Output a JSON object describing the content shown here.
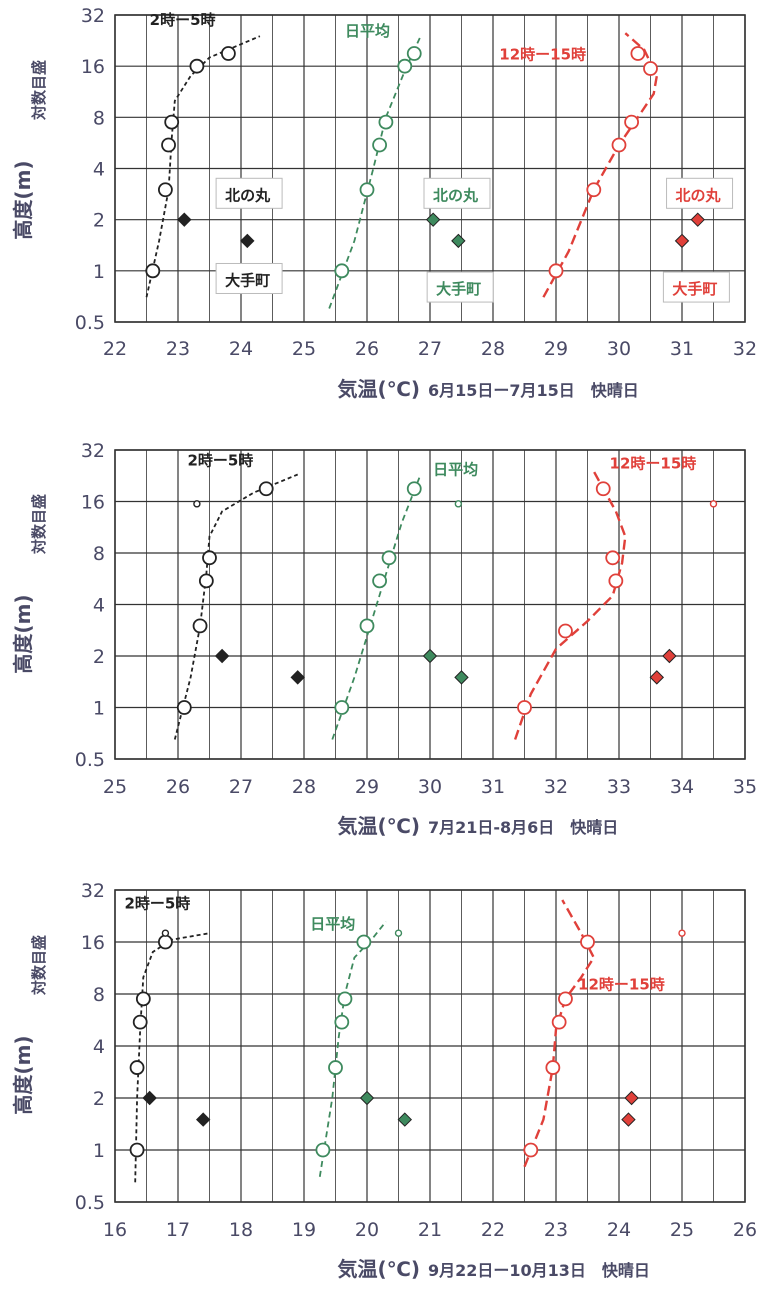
{
  "figure": {
    "ylabel_main": "高度(m)",
    "ylabel_sub": "対数目盛",
    "ylabel_unit": "",
    "colors": {
      "night": "#222222",
      "mean": "#3e8a5e",
      "day": "#e0403a",
      "grid": "#333333"
    }
  },
  "chart_data": [
    {
      "type": "scatter",
      "yscale": "log2",
      "xlabel": "気温(℃)",
      "period": "6月15日ー7月15日　快晴日",
      "xlim": [
        22,
        32
      ],
      "xticks": [
        22,
        23,
        24,
        25,
        26,
        27,
        28,
        29,
        30,
        31,
        32
      ],
      "ylim": [
        0.5,
        32
      ],
      "yticks": [
        0.5,
        1,
        2,
        4,
        8,
        16,
        32
      ],
      "series": [
        {
          "name": "2時ー5時",
          "color": "#222222",
          "dash": "4,3",
          "width": 1.8,
          "points": [
            {
              "x": 22.6,
              "y": 1
            },
            {
              "x": 22.8,
              "y": 3
            },
            {
              "x": 22.85,
              "y": 5.5
            },
            {
              "x": 22.9,
              "y": 7.5
            },
            {
              "x": 23.3,
              "y": 16
            },
            {
              "x": 23.8,
              "y": 19
            }
          ],
          "line": [
            {
              "x": 22.5,
              "y": 0.7
            },
            {
              "x": 22.7,
              "y": 1.5
            },
            {
              "x": 22.85,
              "y": 3
            },
            {
              "x": 22.9,
              "y": 6
            },
            {
              "x": 22.95,
              "y": 10
            },
            {
              "x": 23.2,
              "y": 14
            },
            {
              "x": 23.5,
              "y": 18
            },
            {
              "x": 24.3,
              "y": 24
            }
          ]
        },
        {
          "name": "日平均",
          "color": "#3e8a5e",
          "dash": "6,4",
          "width": 1.8,
          "points": [
            {
              "x": 25.6,
              "y": 1
            },
            {
              "x": 26.0,
              "y": 3
            },
            {
              "x": 26.2,
              "y": 5.5
            },
            {
              "x": 26.3,
              "y": 7.5
            },
            {
              "x": 26.6,
              "y": 16
            },
            {
              "x": 26.75,
              "y": 19
            }
          ],
          "line": [
            {
              "x": 25.4,
              "y": 0.6
            },
            {
              "x": 25.8,
              "y": 1.5
            },
            {
              "x": 26.1,
              "y": 4
            },
            {
              "x": 26.3,
              "y": 8
            },
            {
              "x": 26.6,
              "y": 15
            },
            {
              "x": 26.85,
              "y": 24
            }
          ]
        },
        {
          "name": "12時ー15時",
          "color": "#e0403a",
          "dash": "10,5",
          "width": 2.4,
          "points": [
            {
              "x": 29.0,
              "y": 1
            },
            {
              "x": 29.6,
              "y": 3
            },
            {
              "x": 30.0,
              "y": 5.5
            },
            {
              "x": 30.2,
              "y": 7.5
            },
            {
              "x": 30.5,
              "y": 15.5
            },
            {
              "x": 30.3,
              "y": 19
            }
          ],
          "line": [
            {
              "x": 28.8,
              "y": 0.7
            },
            {
              "x": 29.2,
              "y": 1.3
            },
            {
              "x": 29.6,
              "y": 3
            },
            {
              "x": 30.0,
              "y": 5.5
            },
            {
              "x": 30.3,
              "y": 8
            },
            {
              "x": 30.55,
              "y": 11
            },
            {
              "x": 30.6,
              "y": 14
            },
            {
              "x": 30.4,
              "y": 20
            },
            {
              "x": 30.1,
              "y": 25
            }
          ]
        },
        {
          "name": "北の丸",
          "marker": "diamond",
          "points": [
            {
              "x": 23.1,
              "y": 2,
              "c": "#222222"
            },
            {
              "x": 27.05,
              "y": 2,
              "c": "#3e8a5e"
            },
            {
              "x": 31.25,
              "y": 2,
              "c": "#e0403a"
            }
          ]
        },
        {
          "name": "大手町",
          "marker": "diamond",
          "points": [
            {
              "x": 24.1,
              "y": 1.5,
              "c": "#222222"
            },
            {
              "x": 27.45,
              "y": 1.5,
              "c": "#3e8a5e"
            },
            {
              "x": 31.0,
              "y": 1.5,
              "c": "#e0403a"
            }
          ]
        }
      ],
      "labels": [
        {
          "text": "2時ー5時",
          "x": 22.55,
          "y": 28,
          "color": "#222222",
          "box": false,
          "size": 15
        },
        {
          "text": "日平均",
          "x": 25.65,
          "y": 24,
          "color": "#3e8a5e",
          "box": false,
          "size": 15
        },
        {
          "text": "12時ー15時",
          "x": 28.1,
          "y": 17.5,
          "color": "#e0403a",
          "box": false,
          "size": 15
        },
        {
          "text": "北の丸",
          "x": 23.7,
          "y": 2.6,
          "color": "#222222",
          "box": true,
          "size": 15
        },
        {
          "text": "大手町",
          "x": 23.7,
          "y": 0.82,
          "color": "#222222",
          "box": true,
          "size": 15
        },
        {
          "text": "北の丸",
          "x": 27.0,
          "y": 2.6,
          "color": "#3e8a5e",
          "box": true,
          "size": 15
        },
        {
          "text": "大手町",
          "x": 27.05,
          "y": 0.73,
          "color": "#3e8a5e",
          "box": true,
          "size": 15
        },
        {
          "text": "北の丸",
          "x": 30.85,
          "y": 2.6,
          "color": "#e0403a",
          "box": true,
          "size": 15
        },
        {
          "text": "大手町",
          "x": 30.8,
          "y": 0.73,
          "color": "#e0403a",
          "box": true,
          "size": 15
        }
      ]
    },
    {
      "type": "scatter",
      "yscale": "log2",
      "xlabel": "気温(℃)",
      "period": "7月21日-8月6日　快晴日",
      "xlim": [
        25,
        35
      ],
      "xticks": [
        25,
        26,
        27,
        28,
        29,
        30,
        31,
        32,
        33,
        34,
        35
      ],
      "ylim": [
        0.5,
        32
      ],
      "yticks": [
        0.5,
        1,
        2,
        4,
        8,
        16,
        32
      ],
      "series": [
        {
          "name": "2時ー5時",
          "color": "#222222",
          "dash": "4,3",
          "width": 1.8,
          "points": [
            {
              "x": 26.1,
              "y": 1
            },
            {
              "x": 26.35,
              "y": 3
            },
            {
              "x": 26.45,
              "y": 5.5
            },
            {
              "x": 26.5,
              "y": 7.5
            },
            {
              "x": 27.4,
              "y": 19
            }
          ],
          "line": [
            {
              "x": 25.95,
              "y": 0.65
            },
            {
              "x": 26.2,
              "y": 1.5
            },
            {
              "x": 26.35,
              "y": 3
            },
            {
              "x": 26.45,
              "y": 6
            },
            {
              "x": 26.5,
              "y": 10
            },
            {
              "x": 26.7,
              "y": 14
            },
            {
              "x": 27.2,
              "y": 18
            },
            {
              "x": 27.9,
              "y": 23
            }
          ],
          "small": [
            {
              "x": 26.3,
              "y": 15.5
            }
          ]
        },
        {
          "name": "日平均",
          "color": "#3e8a5e",
          "dash": "6,4",
          "width": 1.8,
          "points": [
            {
              "x": 28.6,
              "y": 1
            },
            {
              "x": 29.0,
              "y": 3
            },
            {
              "x": 29.2,
              "y": 5.5
            },
            {
              "x": 29.35,
              "y": 7.5
            },
            {
              "x": 29.75,
              "y": 19
            }
          ],
          "line": [
            {
              "x": 28.45,
              "y": 0.65
            },
            {
              "x": 28.8,
              "y": 1.5
            },
            {
              "x": 29.05,
              "y": 3
            },
            {
              "x": 29.3,
              "y": 6
            },
            {
              "x": 29.55,
              "y": 12
            },
            {
              "x": 29.85,
              "y": 23
            }
          ],
          "small": [
            {
              "x": 30.45,
              "y": 15.5
            }
          ]
        },
        {
          "name": "12時ー15時",
          "color": "#e0403a",
          "dash": "10,5",
          "width": 2.4,
          "points": [
            {
              "x": 31.5,
              "y": 1
            },
            {
              "x": 32.15,
              "y": 2.8
            },
            {
              "x": 32.95,
              "y": 5.5
            },
            {
              "x": 32.9,
              "y": 7.5
            },
            {
              "x": 32.75,
              "y": 19
            }
          ],
          "line": [
            {
              "x": 31.35,
              "y": 0.65
            },
            {
              "x": 31.6,
              "y": 1.2
            },
            {
              "x": 32.0,
              "y": 2.2
            },
            {
              "x": 32.5,
              "y": 3.2
            },
            {
              "x": 32.9,
              "y": 4.5
            },
            {
              "x": 33.05,
              "y": 7
            },
            {
              "x": 33.1,
              "y": 10
            },
            {
              "x": 32.95,
              "y": 14
            },
            {
              "x": 32.75,
              "y": 19
            },
            {
              "x": 32.6,
              "y": 24
            }
          ],
          "small": [
            {
              "x": 34.5,
              "y": 15.5
            }
          ]
        },
        {
          "name": "北の丸",
          "marker": "diamond",
          "points": [
            {
              "x": 26.7,
              "y": 2,
              "c": "#222222"
            },
            {
              "x": 30.0,
              "y": 2,
              "c": "#3e8a5e"
            },
            {
              "x": 33.8,
              "y": 2,
              "c": "#e0403a"
            }
          ]
        },
        {
          "name": "大手町",
          "marker": "diamond",
          "points": [
            {
              "x": 27.9,
              "y": 1.5,
              "c": "#222222"
            },
            {
              "x": 30.5,
              "y": 1.5,
              "c": "#3e8a5e"
            },
            {
              "x": 33.6,
              "y": 1.5,
              "c": "#e0403a"
            }
          ]
        }
      ],
      "labels": [
        {
          "text": "2時ー5時",
          "x": 26.15,
          "y": 26,
          "color": "#222222",
          "box": false,
          "size": 15
        },
        {
          "text": "日平均",
          "x": 30.05,
          "y": 23,
          "color": "#3e8a5e",
          "box": false,
          "size": 15
        },
        {
          "text": "12時ー15時",
          "x": 32.85,
          "y": 25,
          "color": "#e0403a",
          "box": false,
          "size": 15
        }
      ]
    },
    {
      "type": "scatter",
      "yscale": "log2",
      "xlabel": "気温(℃)",
      "period": "9月22日ー10月13日　快晴日",
      "xlim": [
        16,
        26
      ],
      "xticks": [
        16,
        17,
        18,
        19,
        20,
        21,
        22,
        23,
        24,
        25,
        26
      ],
      "ylim": [
        0.5,
        32
      ],
      "yticks": [
        0.5,
        1,
        2,
        4,
        8,
        16,
        32
      ],
      "series": [
        {
          "name": "2時ー5時",
          "color": "#222222",
          "dash": "4,3",
          "width": 1.8,
          "points": [
            {
              "x": 16.35,
              "y": 1
            },
            {
              "x": 16.35,
              "y": 3
            },
            {
              "x": 16.4,
              "y": 5.5
            },
            {
              "x": 16.45,
              "y": 7.5
            },
            {
              "x": 16.8,
              "y": 16
            }
          ],
          "line": [
            {
              "x": 16.32,
              "y": 0.65
            },
            {
              "x": 16.35,
              "y": 2
            },
            {
              "x": 16.4,
              "y": 5
            },
            {
              "x": 16.45,
              "y": 10
            },
            {
              "x": 16.6,
              "y": 14
            },
            {
              "x": 16.9,
              "y": 16.5
            },
            {
              "x": 17.5,
              "y": 18
            }
          ],
          "small": [
            {
              "x": 16.8,
              "y": 18
            }
          ]
        },
        {
          "name": "日平均",
          "color": "#3e8a5e",
          "dash": "6,4",
          "width": 1.8,
          "points": [
            {
              "x": 19.3,
              "y": 1
            },
            {
              "x": 19.5,
              "y": 3
            },
            {
              "x": 19.6,
              "y": 5.5
            },
            {
              "x": 19.65,
              "y": 7.5
            },
            {
              "x": 19.95,
              "y": 16
            }
          ],
          "line": [
            {
              "x": 19.25,
              "y": 0.7
            },
            {
              "x": 19.45,
              "y": 2
            },
            {
              "x": 19.55,
              "y": 4.5
            },
            {
              "x": 19.65,
              "y": 8
            },
            {
              "x": 19.8,
              "y": 13
            },
            {
              "x": 20.1,
              "y": 17
            },
            {
              "x": 20.3,
              "y": 21
            }
          ],
          "small": [
            {
              "x": 20.5,
              "y": 18
            }
          ]
        },
        {
          "name": "12時ー15時",
          "color": "#e0403a",
          "dash": "10,5",
          "width": 2.4,
          "points": [
            {
              "x": 22.6,
              "y": 1
            },
            {
              "x": 22.95,
              "y": 3
            },
            {
              "x": 23.05,
              "y": 5.5
            },
            {
              "x": 23.15,
              "y": 7.5
            },
            {
              "x": 23.5,
              "y": 16
            }
          ],
          "line": [
            {
              "x": 22.5,
              "y": 0.8
            },
            {
              "x": 22.8,
              "y": 1.5
            },
            {
              "x": 22.95,
              "y": 3
            },
            {
              "x": 23.0,
              "y": 5
            },
            {
              "x": 23.15,
              "y": 7.5
            },
            {
              "x": 23.4,
              "y": 10
            },
            {
              "x": 23.6,
              "y": 13
            },
            {
              "x": 23.4,
              "y": 18
            },
            {
              "x": 23.1,
              "y": 28
            }
          ],
          "small": [
            {
              "x": 25.0,
              "y": 18
            }
          ]
        },
        {
          "name": "北の丸",
          "marker": "diamond",
          "points": [
            {
              "x": 16.55,
              "y": 2,
              "c": "#222222"
            },
            {
              "x": 20.0,
              "y": 2,
              "c": "#3e8a5e"
            },
            {
              "x": 24.2,
              "y": 2,
              "c": "#e0403a"
            }
          ]
        },
        {
          "name": "大手町",
          "marker": "diamond",
          "points": [
            {
              "x": 17.4,
              "y": 1.5,
              "c": "#222222"
            },
            {
              "x": 20.6,
              "y": 1.5,
              "c": "#3e8a5e"
            },
            {
              "x": 24.15,
              "y": 1.5,
              "c": "#e0403a"
            }
          ]
        }
      ],
      "labels": [
        {
          "text": "2時ー5時",
          "x": 16.15,
          "y": 25,
          "color": "#222222",
          "box": false,
          "size": 15
        },
        {
          "text": "日平均",
          "x": 19.1,
          "y": 19,
          "color": "#3e8a5e",
          "box": false,
          "size": 15
        },
        {
          "text": "12時ー15時",
          "x": 23.35,
          "y": 8.5,
          "color": "#e0403a",
          "box": false,
          "size": 15
        }
      ]
    }
  ]
}
